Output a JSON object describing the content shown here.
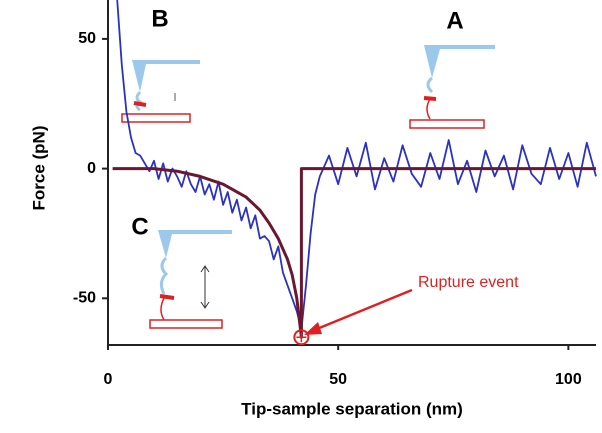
{
  "chart_data": {
    "type": "line",
    "xlabel": "Tip-sample separation (nm)",
    "ylabel": "Force (pN)",
    "xlim": [
      0,
      106
    ],
    "ylim": [
      -68,
      65
    ],
    "xticks": [
      0,
      50,
      100
    ],
    "yticks": [
      -50,
      0,
      50
    ],
    "annotations": [
      "A",
      "B",
      "C",
      "Rupture event"
    ],
    "series": [
      {
        "color": "#2b31c0",
        "x": [
          2,
          3,
          4,
          5,
          6,
          7,
          8,
          9,
          10,
          11,
          12,
          13,
          14,
          15,
          16,
          17,
          18,
          19,
          20,
          21,
          22,
          23,
          24,
          25,
          26,
          27,
          28,
          29,
          30,
          31,
          32,
          33,
          34,
          35,
          36,
          37,
          38,
          39,
          40,
          41,
          42,
          43,
          44,
          45,
          46,
          48,
          50,
          52,
          54,
          56,
          58,
          60,
          62,
          64,
          66,
          68,
          70,
          72,
          74,
          76,
          78,
          80,
          82,
          84,
          86,
          88,
          90,
          92,
          94,
          96,
          98,
          100,
          102,
          104,
          106
        ],
        "values": [
          65,
          40,
          22,
          12,
          6,
          5,
          2,
          -1,
          3,
          -4,
          2,
          -5,
          0,
          -3,
          -7,
          -1,
          -6,
          -9,
          -3,
          -10,
          -6,
          -12,
          -5,
          -14,
          -9,
          -17,
          -12,
          -20,
          -15,
          -23,
          -18,
          -27,
          -26,
          -28,
          -35,
          -30,
          -40,
          -45,
          -50,
          -55,
          -62,
          -45,
          -25,
          -10,
          -3,
          5,
          -6,
          8,
          -3,
          10,
          -8,
          4,
          -5,
          9,
          -2,
          -7,
          6,
          -4,
          11,
          -6,
          3,
          -9,
          7,
          -3,
          5,
          -8,
          9,
          -2,
          -6,
          8,
          -4,
          6,
          -7,
          10,
          -3
        ]
      },
      {
        "color": "#6a1830",
        "x": [
          1,
          10,
          15,
          20,
          25,
          30,
          33,
          35,
          37,
          39,
          40,
          41,
          42,
          42,
          106
        ],
        "values": [
          0,
          0,
          -1,
          -3,
          -6,
          -11,
          -16,
          -21,
          -27,
          -35,
          -41,
          -50,
          -65,
          0,
          0
        ]
      }
    ]
  }
}
